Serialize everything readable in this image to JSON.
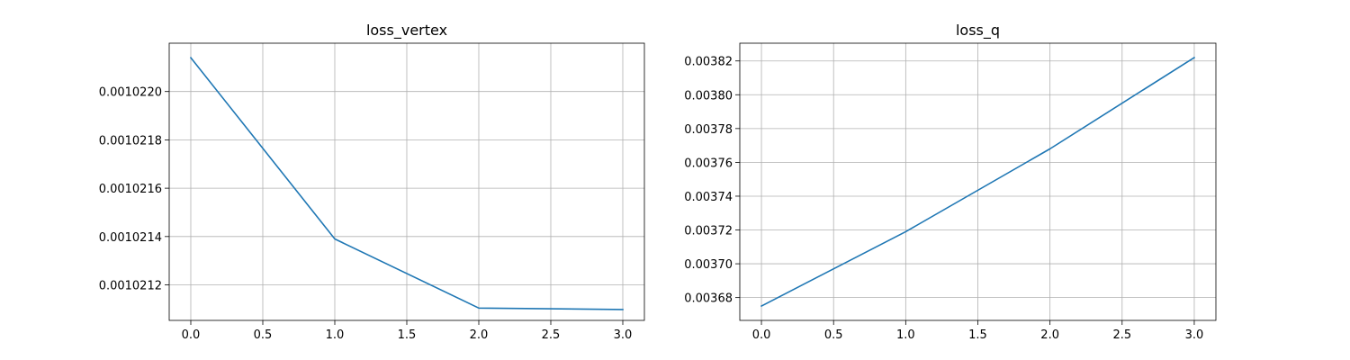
{
  "chart_data": [
    {
      "type": "line",
      "title": "loss_vertex",
      "xlabel": "",
      "ylabel": "",
      "x": [
        0,
        1,
        2,
        3
      ],
      "series": [
        {
          "values": [
            0.00102214,
            0.00102139,
            0.001021104,
            0.001021098
          ]
        }
      ],
      "xlim": [
        -0.15,
        3.15
      ],
      "ylim": [
        0.001021053,
        0.0010222
      ],
      "xticks": [
        0.0,
        0.5,
        1.0,
        1.5,
        2.0,
        2.5,
        3.0
      ],
      "xtick_labels": [
        "0.0",
        "0.5",
        "1.0",
        "1.5",
        "2.0",
        "2.5",
        "3.0"
      ],
      "yticks": [
        0.0010212,
        0.0010214,
        0.0010216,
        0.0010218,
        0.001022
      ],
      "ytick_labels": [
        "0.0010212",
        "0.0010214",
        "0.0010216",
        "0.0010218",
        "0.0010220"
      ],
      "grid": true,
      "color": "#1f77b4"
    },
    {
      "type": "line",
      "title": "loss_q",
      "xlabel": "",
      "ylabel": "",
      "x": [
        0,
        1,
        2,
        3
      ],
      "series": [
        {
          "values": [
            0.003675,
            0.003719,
            0.003768,
            0.003822
          ]
        }
      ],
      "xlim": [
        -0.15,
        3.15
      ],
      "ylim": [
        0.0036665,
        0.0038305
      ],
      "xticks": [
        0.0,
        0.5,
        1.0,
        1.5,
        2.0,
        2.5,
        3.0
      ],
      "xtick_labels": [
        "0.0",
        "0.5",
        "1.0",
        "1.5",
        "2.0",
        "2.5",
        "3.0"
      ],
      "yticks": [
        0.00368,
        0.0037,
        0.00372,
        0.00374,
        0.00376,
        0.00378,
        0.0038,
        0.00382
      ],
      "ytick_labels": [
        "0.00368",
        "0.00370",
        "0.00372",
        "0.00374",
        "0.00376",
        "0.00378",
        "0.00380",
        "0.00382"
      ],
      "grid": true,
      "color": "#1f77b4"
    }
  ]
}
